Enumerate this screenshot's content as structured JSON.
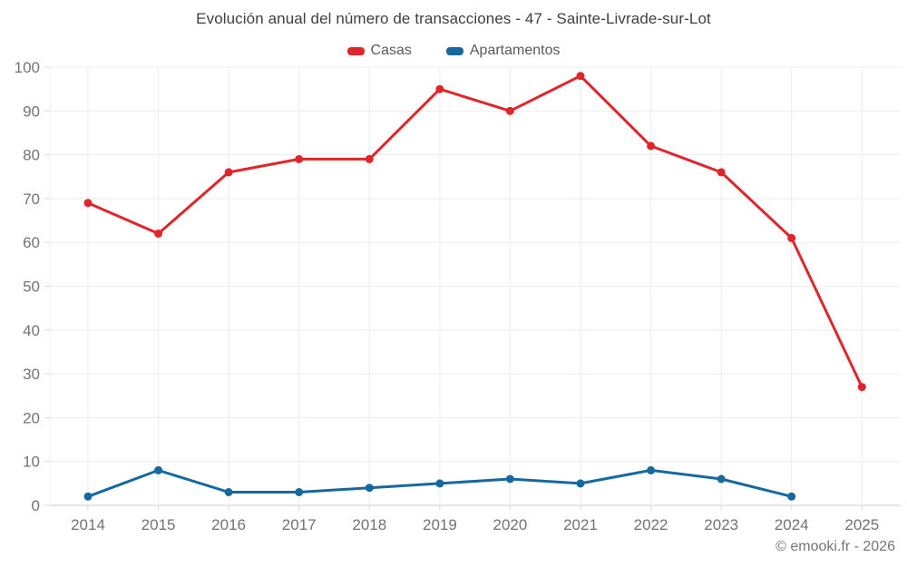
{
  "chart_data": {
    "type": "line",
    "title": "Evolución anual del número de transacciones - 47 - Sainte-Livrade-sur-Lot",
    "categories": [
      "2014",
      "2015",
      "2016",
      "2017",
      "2018",
      "2019",
      "2020",
      "2021",
      "2022",
      "2023",
      "2024",
      "2025"
    ],
    "series": [
      {
        "name": "Casas",
        "color": "#e0262b",
        "values": [
          69,
          62,
          76,
          79,
          79,
          95,
          90,
          98,
          82,
          76,
          61,
          27
        ]
      },
      {
        "name": "Apartamentos",
        "color": "#16699f",
        "values": [
          2,
          8,
          3,
          3,
          4,
          5,
          6,
          5,
          8,
          6,
          2,
          null
        ]
      }
    ],
    "xlabel": "",
    "ylabel": "",
    "ylim": [
      0,
      100
    ],
    "y_tick_step": 10,
    "grid": true,
    "legend_position": "top"
  },
  "footer": {
    "copyright": "© emooki.fr - 2026"
  }
}
